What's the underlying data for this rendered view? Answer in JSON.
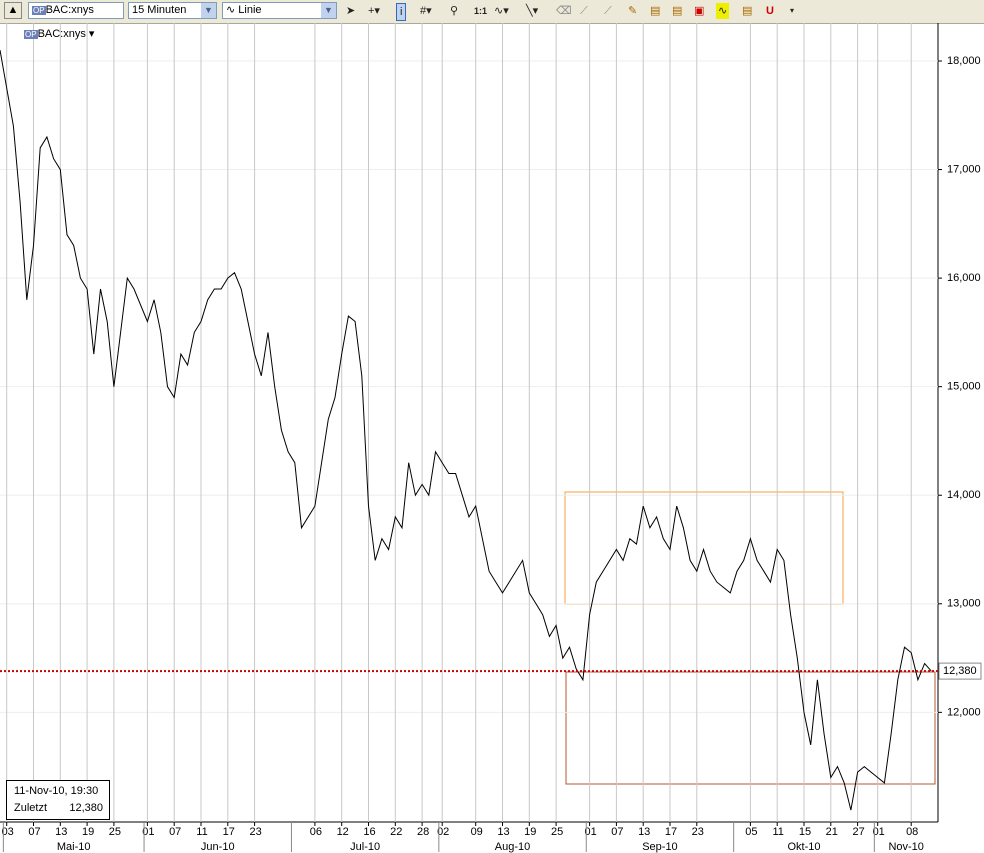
{
  "toolbar": {
    "symbol": "BAC:xnys",
    "interval": "15 Minuten",
    "style": "Linie",
    "zoom": "1:1"
  },
  "chart_data": {
    "type": "line",
    "title": "BAC:xnys",
    "color": "#000000",
    "x": [
      "2010-04-30",
      "2010-05-03",
      "2010-05-04",
      "2010-05-05",
      "2010-05-06",
      "2010-05-07",
      "2010-05-10",
      "2010-05-11",
      "2010-05-12",
      "2010-05-13",
      "2010-05-14",
      "2010-05-17",
      "2010-05-18",
      "2010-05-19",
      "2010-05-20",
      "2010-05-21",
      "2010-05-24",
      "2010-05-25",
      "2010-05-26",
      "2010-05-27",
      "2010-05-28",
      "2010-06-01",
      "2010-06-02",
      "2010-06-03",
      "2010-06-04",
      "2010-06-07",
      "2010-06-08",
      "2010-06-09",
      "2010-06-10",
      "2010-06-11",
      "2010-06-14",
      "2010-06-15",
      "2010-06-16",
      "2010-06-17",
      "2010-06-18",
      "2010-06-21",
      "2010-06-22",
      "2010-06-23",
      "2010-06-24",
      "2010-06-25",
      "2010-06-28",
      "2010-06-29",
      "2010-06-30",
      "2010-07-01",
      "2010-07-02",
      "2010-07-06",
      "2010-07-07",
      "2010-07-08",
      "2010-07-09",
      "2010-07-12",
      "2010-07-13",
      "2010-07-14",
      "2010-07-15",
      "2010-07-16",
      "2010-07-19",
      "2010-07-20",
      "2010-07-21",
      "2010-07-22",
      "2010-07-23",
      "2010-07-26",
      "2010-07-27",
      "2010-07-28",
      "2010-07-29",
      "2010-07-30",
      "2010-08-02",
      "2010-08-03",
      "2010-08-04",
      "2010-08-05",
      "2010-08-06",
      "2010-08-09",
      "2010-08-10",
      "2010-08-11",
      "2010-08-12",
      "2010-08-13",
      "2010-08-16",
      "2010-08-17",
      "2010-08-18",
      "2010-08-19",
      "2010-08-20",
      "2010-08-23",
      "2010-08-24",
      "2010-08-25",
      "2010-08-26",
      "2010-08-27",
      "2010-08-30",
      "2010-08-31",
      "2010-09-01",
      "2010-09-02",
      "2010-09-03",
      "2010-09-07",
      "2010-09-08",
      "2010-09-09",
      "2010-09-10",
      "2010-09-13",
      "2010-09-14",
      "2010-09-15",
      "2010-09-16",
      "2010-09-17",
      "2010-09-20",
      "2010-09-21",
      "2010-09-22",
      "2010-09-23",
      "2010-09-24",
      "2010-09-27",
      "2010-09-28",
      "2010-09-29",
      "2010-09-30",
      "2010-10-01",
      "2010-10-04",
      "2010-10-05",
      "2010-10-06",
      "2010-10-07",
      "2010-10-08",
      "2010-10-11",
      "2010-10-12",
      "2010-10-13",
      "2010-10-14",
      "2010-10-15",
      "2010-10-18",
      "2010-10-19",
      "2010-10-20",
      "2010-10-21",
      "2010-10-22",
      "2010-10-25",
      "2010-10-26",
      "2010-10-27",
      "2010-10-28",
      "2010-10-29",
      "2010-11-01",
      "2010-11-02",
      "2010-11-03",
      "2010-11-04",
      "2010-11-05",
      "2010-11-08",
      "2010-11-09",
      "2010-11-10",
      "2010-11-11"
    ],
    "values": [
      18.1,
      17.75,
      17.4,
      16.7,
      15.8,
      16.3,
      17.2,
      17.3,
      17.1,
      17.0,
      16.4,
      16.3,
      16.0,
      15.9,
      15.3,
      15.9,
      15.6,
      15.0,
      15.5,
      16.0,
      15.9,
      15.6,
      15.8,
      15.5,
      15.0,
      14.9,
      15.3,
      15.2,
      15.5,
      15.6,
      15.8,
      15.9,
      15.9,
      16.0,
      16.05,
      15.9,
      15.6,
      15.3,
      15.1,
      15.5,
      15.0,
      14.6,
      14.4,
      14.3,
      13.7,
      13.9,
      14.3,
      14.7,
      14.9,
      15.3,
      15.65,
      15.6,
      15.1,
      13.9,
      13.4,
      13.6,
      13.5,
      13.8,
      13.7,
      14.3,
      14.0,
      14.1,
      14.0,
      14.4,
      14.3,
      14.2,
      14.2,
      14.0,
      13.8,
      13.9,
      13.6,
      13.3,
      13.2,
      13.1,
      13.2,
      13.3,
      13.4,
      13.1,
      13.0,
      12.9,
      12.7,
      12.8,
      12.5,
      12.6,
      12.4,
      12.3,
      12.9,
      13.2,
      13.3,
      13.5,
      13.4,
      13.6,
      13.55,
      13.9,
      13.7,
      13.8,
      13.6,
      13.5,
      13.9,
      13.7,
      13.4,
      13.3,
      13.5,
      13.3,
      13.2,
      13.15,
      13.1,
      13.3,
      13.4,
      13.6,
      13.4,
      13.3,
      13.2,
      13.5,
      13.4,
      12.9,
      12.5,
      12.0,
      11.7,
      12.3,
      11.8,
      11.4,
      11.5,
      11.35,
      11.1,
      11.45,
      11.5,
      11.45,
      11.4,
      11.35,
      11.8,
      12.3,
      12.6,
      12.55,
      12.3,
      12.45,
      12.38
    ],
    "xlim": [
      "2010-04-30",
      "2010-11-12"
    ],
    "xticks": [
      {
        "value": "2010-05-03",
        "label": "03"
      },
      {
        "value": "2010-05-07",
        "label": "07"
      },
      {
        "value": "2010-05-13",
        "label": "13"
      },
      {
        "value": "2010-05-19",
        "label": "19"
      },
      {
        "value": "2010-05-25",
        "label": "25"
      },
      {
        "value": "2010-06-01",
        "label": "01"
      },
      {
        "value": "2010-06-07",
        "label": "07"
      },
      {
        "value": "2010-06-11",
        "label": "11"
      },
      {
        "value": "2010-06-17",
        "label": "17"
      },
      {
        "value": "2010-06-23",
        "label": "23"
      },
      {
        "value": "2010-07-06",
        "label": "06"
      },
      {
        "value": "2010-07-12",
        "label": "12"
      },
      {
        "value": "2010-07-16",
        "label": "16"
      },
      {
        "value": "2010-07-22",
        "label": "22"
      },
      {
        "value": "2010-07-28",
        "label": "28"
      },
      {
        "value": "2010-08-02",
        "label": "02"
      },
      {
        "value": "2010-08-09",
        "label": "09"
      },
      {
        "value": "2010-08-13",
        "label": "13"
      },
      {
        "value": "2010-08-19",
        "label": "19"
      },
      {
        "value": "2010-08-25",
        "label": "25"
      },
      {
        "value": "2010-09-01",
        "label": "01"
      },
      {
        "value": "2010-09-07",
        "label": "07"
      },
      {
        "value": "2010-09-13",
        "label": "13"
      },
      {
        "value": "2010-09-17",
        "label": "17"
      },
      {
        "value": "2010-09-23",
        "label": "23"
      },
      {
        "value": "2010-10-05",
        "label": "05"
      },
      {
        "value": "2010-10-11",
        "label": "11"
      },
      {
        "value": "2010-10-15",
        "label": "15"
      },
      {
        "value": "2010-10-21",
        "label": "21"
      },
      {
        "value": "2010-10-27",
        "label": "27"
      },
      {
        "value": "2010-11-01",
        "label": "01"
      },
      {
        "value": "2010-11-08",
        "label": "08"
      }
    ],
    "months": [
      {
        "value": "2010-05-03",
        "label": "Mai-10"
      },
      {
        "value": "2010-06-01",
        "label": "Jun-10"
      },
      {
        "value": "2010-07-01",
        "label": "Jul-10"
      },
      {
        "value": "2010-08-02",
        "label": "Aug-10"
      },
      {
        "value": "2010-09-01",
        "label": "Sep-10"
      },
      {
        "value": "2010-10-01",
        "label": "Okt-10"
      },
      {
        "value": "2010-11-01",
        "label": "Nov-10"
      }
    ],
    "ylim": [
      10.99,
      18.35
    ],
    "yticks": [
      {
        "value": 12,
        "label": "12,000"
      },
      {
        "value": 13,
        "label": "13,000"
      },
      {
        "value": 14,
        "label": "14,000"
      },
      {
        "value": 15,
        "label": "15,000"
      },
      {
        "value": 16,
        "label": "16,000"
      },
      {
        "value": 17,
        "label": "17,000"
      },
      {
        "value": 18,
        "label": "18,000"
      }
    ],
    "grid": true,
    "last_value": 12.38,
    "last_value_label": "12,380",
    "last_color": "#cc0000",
    "info": {
      "time": "11-Nov-10, 19:30",
      "label": "Zuletzt"
    }
  }
}
